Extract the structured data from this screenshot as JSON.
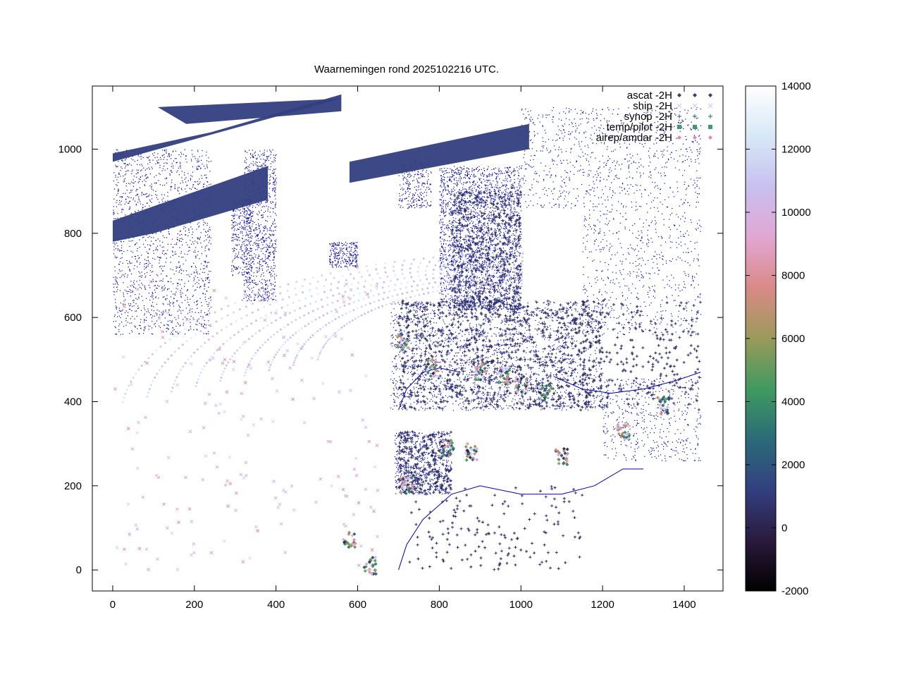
{
  "chart_data": {
    "type": "scatter",
    "title": "Waarnemingen rond 2025102216 UTC.",
    "xlabel": "",
    "ylabel": "",
    "xlim": [
      -50,
      1495
    ],
    "ylim": [
      -50,
      1150
    ],
    "x_ticks": [
      0,
      200,
      400,
      600,
      800,
      1000,
      1200,
      1400
    ],
    "y_ticks": [
      0,
      200,
      400,
      600,
      800,
      1000
    ],
    "grid": false,
    "legend_position": "top-right",
    "series": [
      {
        "name": "ascat -2H",
        "marker": "diamond",
        "color_key": "#333f80"
      },
      {
        "name": "ship -2H",
        "marker": "x",
        "color_key": "#c8c8e8"
      },
      {
        "name": "synop -2H",
        "marker": "plus",
        "color_key": "#2f6a6a"
      },
      {
        "name": "temp/pilot -2H",
        "marker": "square",
        "color_key": "#3f9a70"
      },
      {
        "name": "airep/amdar -2H",
        "marker": "diamond",
        "color_key": "#e089b8"
      }
    ],
    "colorbar": {
      "min": -2000,
      "max": 14000,
      "ticks": [
        -2000,
        0,
        2000,
        4000,
        6000,
        8000,
        10000,
        12000,
        14000
      ],
      "colors": [
        "#000000",
        "#2a1a3c",
        "#333f80",
        "#2b6b78",
        "#3f9a60",
        "#9a9a5a",
        "#d98a86",
        "#e2a6d2",
        "#c8c0f0",
        "#d6e8f6",
        "#ffffff"
      ]
    },
    "coastline_color": "#0000b4"
  }
}
